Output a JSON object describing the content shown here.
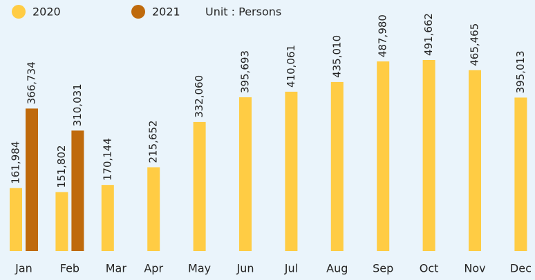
{
  "chart_data": {
    "type": "bar",
    "unit_label": "Unit : Persons",
    "categories": [
      "Jan",
      "Feb",
      "Mar",
      "Apr",
      "May",
      "Jun",
      "Jul",
      "Aug",
      "Sep",
      "Oct",
      "Nov",
      "Dec"
    ],
    "series": [
      {
        "name": "2020",
        "color": "#ffcc44",
        "label_color": "#dba62a",
        "values": [
          161984,
          151802,
          170144,
          215652,
          332060,
          395693,
          410061,
          435010,
          487980,
          491662,
          465465,
          395013
        ],
        "value_labels": [
          "161,984",
          "151,802",
          "170,144",
          "215,652",
          "332,060",
          "395,693",
          "410,061",
          "435,010",
          "487,980",
          "491,662",
          "465,465",
          "395,013"
        ]
      },
      {
        "name": "2021",
        "color": "#bf6a0c",
        "label_color": "#6e4208",
        "values": [
          366734,
          310031,
          null,
          null,
          null,
          null,
          null,
          null,
          null,
          null,
          null,
          null
        ],
        "value_labels": [
          "366,734",
          "310,031",
          null,
          null,
          null,
          null,
          null,
          null,
          null,
          null,
          null,
          null
        ]
      }
    ]
  }
}
